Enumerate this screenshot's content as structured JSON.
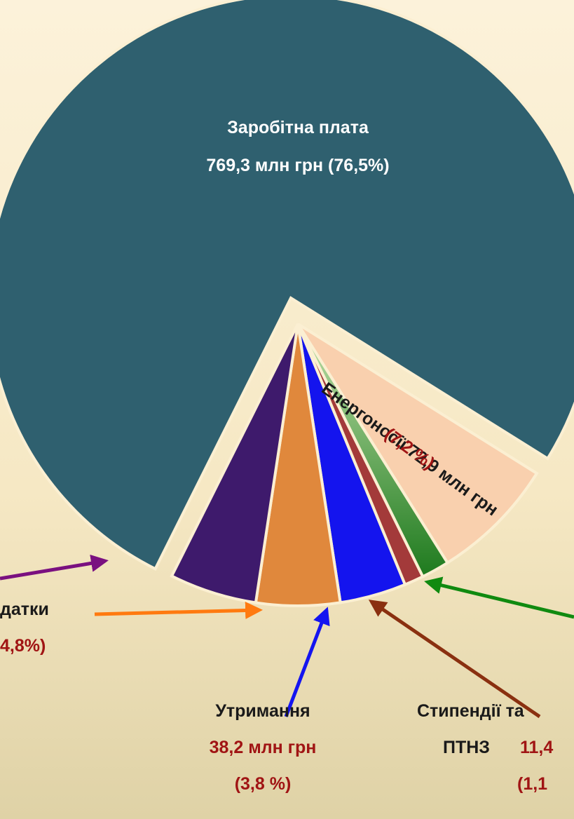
{
  "chart_data": {
    "type": "pie",
    "values": [
      76.5,
      7.2,
      1.6,
      1.1,
      3.8,
      4.8,
      5.0
    ],
    "colors": [
      "#2f606f",
      "#f9d0ae",
      "#2f8f2f",
      "#a33a3a",
      "#1414ee",
      "#e0883c",
      "#3e1a6c"
    ],
    "labels": {
      "wages": [
        "Заробітна плата",
        "769,3 млн грн (76,5%)"
      ],
      "energy": [
        "Енергоносії 72,9 млн грн",
        "(7,2 %)"
      ],
      "other": [
        "датки",
        "4,8%)"
      ],
      "upkeep": [
        "Утримання",
        "38,2 млн грн",
        "(3,8 %)"
      ],
      "stipends": [
        "Стипендії та",
        "ПТНЗ",
        "11,4",
        "(1,1"
      ]
    }
  }
}
